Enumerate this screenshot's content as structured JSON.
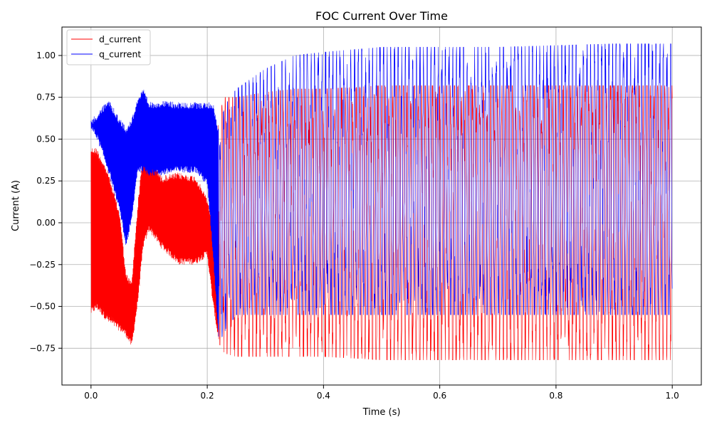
{
  "chart_data": {
    "type": "line",
    "title": "FOC Current Over Time",
    "xlabel": "Time (s)",
    "ylabel": "Current (A)",
    "xlim": [
      -0.05,
      1.05
    ],
    "ylim": [
      -0.97,
      1.17
    ],
    "x_ticks": [
      0.0,
      0.2,
      0.4,
      0.6,
      0.8,
      1.0
    ],
    "x_tick_labels": [
      "0.0",
      "0.2",
      "0.4",
      "0.6",
      "0.8",
      "1.0"
    ],
    "y_ticks": [
      -0.75,
      -0.5,
      -0.25,
      0.0,
      0.25,
      0.5,
      0.75,
      1.0
    ],
    "y_tick_labels": [
      "−0.75",
      "−0.50",
      "−0.25",
      "0.00",
      "0.25",
      "0.50",
      "0.75",
      "1.00"
    ],
    "grid": true,
    "legend_position": "top-left",
    "series": [
      {
        "name": "d_current",
        "color": "#ff0000",
        "envelope": {
          "x": [
            0.0,
            0.01,
            0.03,
            0.05,
            0.06,
            0.07,
            0.08,
            0.09,
            0.1,
            0.12,
            0.15,
            0.18,
            0.2,
            0.21,
            0.22,
            0.23,
            0.25,
            0.3,
            0.35,
            0.4,
            0.5,
            0.6,
            0.7,
            0.8,
            0.9,
            1.0
          ],
          "upper": [
            0.45,
            0.45,
            0.3,
            0.05,
            -0.3,
            -0.35,
            0.1,
            0.45,
            0.45,
            0.28,
            0.3,
            0.28,
            0.15,
            0.0,
            0.65,
            0.75,
            0.75,
            0.78,
            0.8,
            0.8,
            0.82,
            0.82,
            0.82,
            0.82,
            0.82,
            0.82
          ],
          "lower": [
            -0.55,
            -0.52,
            -0.6,
            -0.65,
            -0.68,
            -0.75,
            -0.5,
            -0.15,
            -0.05,
            -0.15,
            -0.25,
            -0.25,
            -0.2,
            -0.5,
            -0.72,
            -0.78,
            -0.8,
            -0.8,
            -0.8,
            -0.8,
            -0.82,
            -0.82,
            -0.82,
            -0.82,
            -0.82,
            -0.82
          ]
        }
      },
      {
        "name": "q_current",
        "color": "#0000ff",
        "envelope": {
          "x": [
            0.0,
            0.01,
            0.03,
            0.05,
            0.06,
            0.07,
            0.08,
            0.09,
            0.1,
            0.12,
            0.15,
            0.18,
            0.2,
            0.21,
            0.22,
            0.23,
            0.25,
            0.3,
            0.35,
            0.4,
            0.5,
            0.6,
            0.7,
            0.8,
            0.9,
            1.0
          ],
          "upper": [
            0.62,
            0.65,
            0.74,
            0.62,
            0.58,
            0.62,
            0.75,
            0.8,
            0.72,
            0.73,
            0.72,
            0.72,
            0.72,
            0.72,
            0.55,
            0.7,
            0.8,
            0.92,
            1.0,
            1.02,
            1.05,
            1.05,
            1.05,
            1.06,
            1.07,
            1.07
          ],
          "lower": [
            0.55,
            0.5,
            0.3,
            0.05,
            -0.15,
            0.0,
            0.3,
            0.3,
            0.28,
            0.28,
            0.3,
            0.3,
            0.22,
            -0.2,
            -0.72,
            -0.65,
            -0.55,
            -0.55,
            -0.55,
            -0.55,
            -0.55,
            -0.55,
            -0.55,
            -0.55,
            -0.55,
            -0.55
          ]
        }
      }
    ]
  }
}
